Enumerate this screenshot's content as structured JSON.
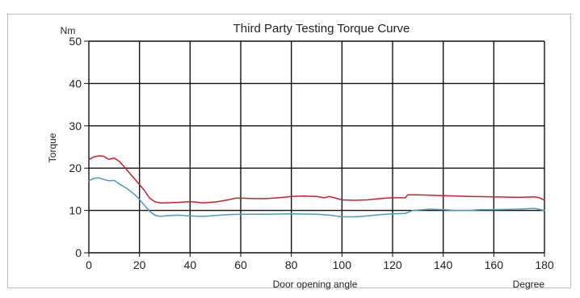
{
  "chart_data": {
    "type": "line",
    "title": "Third Party Testing Torque Curve",
    "xlabel": "Door opening angle",
    "ylabel": "Torque",
    "x_unit": "Degree",
    "y_unit": "Nm",
    "xlim": [
      0,
      180
    ],
    "ylim": [
      0,
      50
    ],
    "x_ticks": [
      0,
      20,
      40,
      60,
      80,
      100,
      120,
      140,
      160,
      180
    ],
    "y_ticks": [
      0,
      10,
      20,
      30,
      40,
      50
    ],
    "grid": true,
    "legend": "none",
    "series": [
      {
        "color": "#cc1f2e",
        "points": [
          [
            0,
            22.0
          ],
          [
            2,
            22.7
          ],
          [
            4,
            22.9
          ],
          [
            6,
            22.8
          ],
          [
            7,
            22.3
          ],
          [
            8,
            22.1
          ],
          [
            10,
            22.4
          ],
          [
            12,
            21.6
          ],
          [
            14,
            20.3
          ],
          [
            16,
            18.9
          ],
          [
            18,
            17.5
          ],
          [
            20,
            16.1
          ],
          [
            22,
            14.7
          ],
          [
            24,
            12.9
          ],
          [
            26,
            12.1
          ],
          [
            28,
            11.8
          ],
          [
            30,
            11.8
          ],
          [
            35,
            11.9
          ],
          [
            40,
            12.1
          ],
          [
            42,
            12.0
          ],
          [
            45,
            11.8
          ],
          [
            50,
            12.0
          ],
          [
            55,
            12.5
          ],
          [
            58,
            12.9
          ],
          [
            60,
            12.9
          ],
          [
            65,
            12.8
          ],
          [
            70,
            12.8
          ],
          [
            75,
            13.0
          ],
          [
            80,
            13.3
          ],
          [
            85,
            13.4
          ],
          [
            90,
            13.3
          ],
          [
            93,
            13.0
          ],
          [
            95,
            13.3
          ],
          [
            97,
            13.0
          ],
          [
            100,
            12.5
          ],
          [
            105,
            12.4
          ],
          [
            110,
            12.5
          ],
          [
            115,
            12.8
          ],
          [
            120,
            13.0
          ],
          [
            125,
            13.0
          ],
          [
            126,
            13.7
          ],
          [
            130,
            13.7
          ],
          [
            140,
            13.5
          ],
          [
            150,
            13.3
          ],
          [
            160,
            13.2
          ],
          [
            170,
            13.1
          ],
          [
            176,
            13.2
          ],
          [
            178,
            13.0
          ],
          [
            180,
            12.4
          ]
        ]
      },
      {
        "color": "#4a9bb7",
        "points": [
          [
            0,
            17.0
          ],
          [
            2,
            17.6
          ],
          [
            4,
            17.7
          ],
          [
            6,
            17.3
          ],
          [
            8,
            17.0
          ],
          [
            10,
            17.1
          ],
          [
            12,
            16.3
          ],
          [
            15,
            15.2
          ],
          [
            18,
            13.8
          ],
          [
            20,
            12.6
          ],
          [
            22,
            11.2
          ],
          [
            24,
            9.8
          ],
          [
            26,
            8.9
          ],
          [
            28,
            8.6
          ],
          [
            30,
            8.7
          ],
          [
            35,
            8.9
          ],
          [
            40,
            8.7
          ],
          [
            45,
            8.6
          ],
          [
            50,
            8.8
          ],
          [
            55,
            9.0
          ],
          [
            60,
            9.1
          ],
          [
            70,
            9.1
          ],
          [
            80,
            9.2
          ],
          [
            90,
            9.1
          ],
          [
            95,
            8.9
          ],
          [
            100,
            8.5
          ],
          [
            105,
            8.5
          ],
          [
            110,
            8.7
          ],
          [
            115,
            9.0
          ],
          [
            120,
            9.2
          ],
          [
            125,
            9.3
          ],
          [
            128,
            10.0
          ],
          [
            130,
            10.1
          ],
          [
            135,
            10.3
          ],
          [
            140,
            10.2
          ],
          [
            145,
            10.0
          ],
          [
            150,
            10.0
          ],
          [
            155,
            10.2
          ],
          [
            160,
            10.2
          ],
          [
            170,
            10.3
          ],
          [
            176,
            10.5
          ],
          [
            180,
            10.0
          ]
        ]
      }
    ]
  }
}
